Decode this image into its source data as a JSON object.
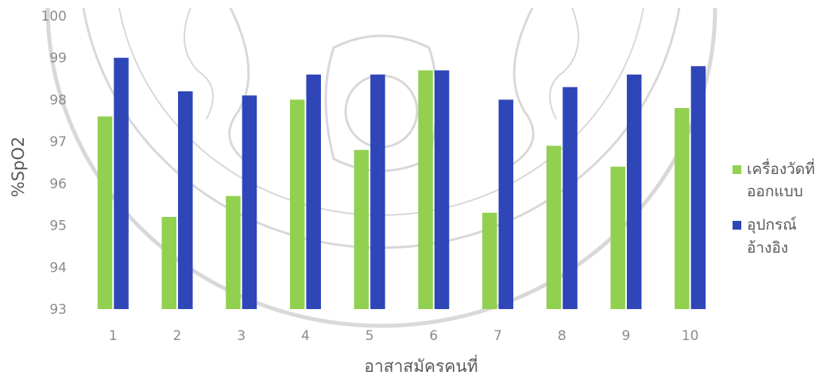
{
  "chart_data": {
    "type": "bar",
    "title": "",
    "xlabel": "อาสาสมัครคนที่",
    "ylabel": "%SpO2",
    "ylim": [
      93,
      100
    ],
    "yticks": [
      93,
      94,
      95,
      96,
      97,
      98,
      99,
      100
    ],
    "grid": false,
    "legend_position": "right",
    "categories": [
      "1",
      "2",
      "3",
      "4",
      "5",
      "6",
      "7",
      "8",
      "9",
      "10"
    ],
    "series": [
      {
        "name": "เครื่องวัดที่ออกแบบ",
        "legend_lines": [
          "เครื่องวัดที่",
          "ออกแบบ"
        ],
        "color": "#92d050",
        "values": [
          97.6,
          95.2,
          95.7,
          98.0,
          96.8,
          98.7,
          95.3,
          96.9,
          96.4,
          97.8
        ]
      },
      {
        "name": "อุปกรณ์อ้างอิง",
        "legend_lines": [
          "อุปกรณ์",
          "อ้างอิง"
        ],
        "color": "#2e46b8",
        "values": [
          99.0,
          98.2,
          98.1,
          98.6,
          98.6,
          98.7,
          98.0,
          98.3,
          98.6,
          98.8
        ]
      }
    ]
  }
}
